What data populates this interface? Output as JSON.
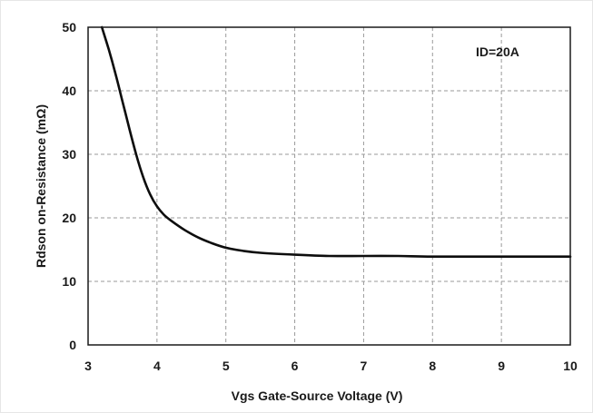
{
  "chart_data": {
    "type": "line",
    "title": "",
    "xlabel": "Vgs Gate-Source Voltage (V)",
    "ylabel": "Rdson on-Resistance (mΩ)",
    "xlim": [
      3,
      10
    ],
    "ylim": [
      0,
      50
    ],
    "xticks": [
      3,
      4,
      5,
      6,
      7,
      8,
      9,
      10
    ],
    "yticks": [
      0,
      10,
      20,
      30,
      40,
      50
    ],
    "xtick_labels": [
      "3",
      "4",
      "5",
      "6",
      "7",
      "8",
      "9",
      "10"
    ],
    "ytick_labels": [
      "0",
      "10",
      "20",
      "30",
      "40",
      "50"
    ],
    "grid": true,
    "annotation": "ID=20A",
    "series": [
      {
        "x": [
          3.2,
          3.3,
          3.4,
          3.5,
          3.6,
          3.7,
          3.8,
          3.9,
          4.0,
          4.1,
          4.2,
          4.4,
          4.6,
          4.8,
          5.0,
          5.25,
          5.5,
          6.0,
          6.5,
          7.0,
          7.5,
          8.0,
          9.0,
          10.0
        ],
        "values": [
          50.0,
          46.5,
          42.6,
          38.3,
          34.0,
          29.9,
          26.4,
          23.7,
          21.8,
          20.5,
          19.6,
          18.1,
          16.9,
          16.0,
          15.3,
          14.8,
          14.5,
          14.2,
          14.0,
          14.0,
          14.0,
          13.9,
          13.9,
          13.9
        ]
      }
    ]
  }
}
